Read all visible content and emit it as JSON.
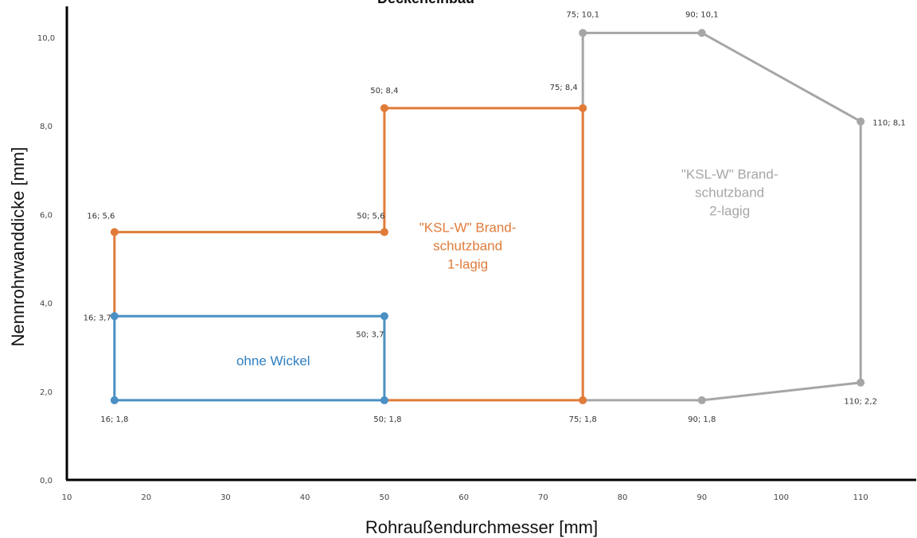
{
  "chart_data": {
    "type": "line",
    "title": "Deckeneinbau",
    "xlabel": "Rohraußendurchmesser [mm]",
    "ylabel": "Nennrohrwanddicke [mm]",
    "xlim": [
      10,
      117
    ],
    "ylim": [
      0,
      10.7
    ],
    "x_ticks": [
      10,
      20,
      30,
      40,
      50,
      60,
      70,
      80,
      90,
      100,
      110
    ],
    "y_ticks": [
      0,
      2,
      4,
      6,
      8,
      10
    ],
    "y_tick_labels": [
      "0,0",
      "2,0",
      "4,0",
      "6,0",
      "8,0",
      "10,0"
    ],
    "grid": false,
    "series": [
      {
        "color": "#4a90c4",
        "points": [
          [
            16,
            1.8
          ],
          [
            50,
            1.8
          ],
          [
            50,
            3.7
          ],
          [
            16,
            3.7
          ],
          [
            16,
            1.8
          ]
        ],
        "markers": [
          {
            "x": 16,
            "y": 1.8,
            "label": "16; 1,8"
          },
          {
            "x": 50,
            "y": 1.8,
            "label": "50; 1,8"
          },
          {
            "x": 50,
            "y": 3.7,
            "label": "50; 3,7"
          },
          {
            "x": 16,
            "y": 3.7,
            "label": "16; 3,7"
          }
        ]
      },
      {
        "color": "#e07b39",
        "points": [
          [
            16,
            3.7
          ],
          [
            16,
            5.6
          ],
          [
            50,
            5.6
          ],
          [
            50,
            8.4
          ],
          [
            75,
            8.4
          ],
          [
            75,
            1.8
          ],
          [
            50,
            1.8
          ]
        ],
        "markers": [
          {
            "x": 16,
            "y": 5.6,
            "label": "16; 5,6"
          },
          {
            "x": 50,
            "y": 5.6,
            "label": "50; 5,6"
          },
          {
            "x": 50,
            "y": 8.4,
            "label": "50; 8,4"
          },
          {
            "x": 75,
            "y": 8.4,
            "label": "75; 8,4"
          },
          {
            "x": 75,
            "y": 1.8,
            "label": "75; 1,8"
          }
        ]
      },
      {
        "color": "#a6a6a6",
        "points": [
          [
            75,
            8.4
          ],
          [
            75,
            10.1
          ],
          [
            90,
            10.1
          ],
          [
            110,
            8.1
          ],
          [
            110,
            2.2
          ],
          [
            90,
            1.8
          ],
          [
            75,
            1.8
          ]
        ],
        "markers": [
          {
            "x": 75,
            "y": 10.1,
            "label": "75; 10,1"
          },
          {
            "x": 90,
            "y": 10.1,
            "label": "90; 10,1"
          },
          {
            "x": 110,
            "y": 8.1,
            "label": "110; 8,1"
          },
          {
            "x": 110,
            "y": 2.2,
            "label": "110; 2,2"
          },
          {
            "x": 90,
            "y": 1.8,
            "label": "90; 1,8"
          }
        ]
      }
    ],
    "annotations": [
      {
        "lines": [
          "ohne Wickel"
        ],
        "x": 36,
        "y": 2.7,
        "color": "#2e7fc1"
      },
      {
        "lines": [
          "\"KSL-W\" Brand-",
          "schutzband",
          "1-lagig"
        ],
        "x": 60.5,
        "y": 5.3,
        "color": "#e07b39"
      },
      {
        "lines": [
          "\"KSL-W\" Brand-",
          "schutzband",
          "2-lagig"
        ],
        "x": 93.5,
        "y": 6.5,
        "color": "#a6a6a6"
      }
    ]
  }
}
